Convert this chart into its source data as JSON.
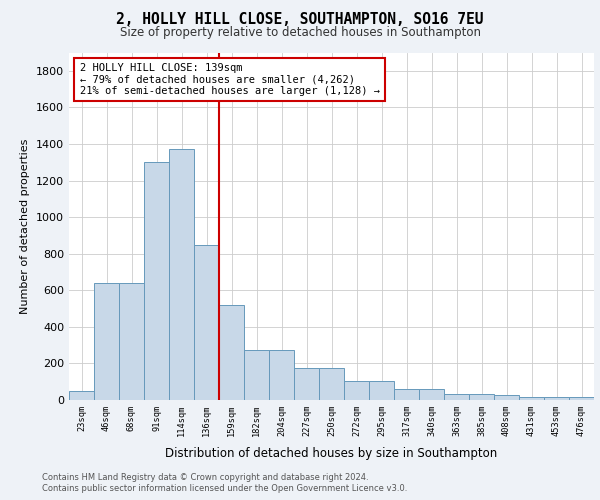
{
  "title_line1": "2, HOLLY HILL CLOSE, SOUTHAMPTON, SO16 7EU",
  "title_line2": "Size of property relative to detached houses in Southampton",
  "xlabel": "Distribution of detached houses by size in Southampton",
  "ylabel": "Number of detached properties",
  "categories": [
    "23sqm",
    "46sqm",
    "68sqm",
    "91sqm",
    "114sqm",
    "136sqm",
    "159sqm",
    "182sqm",
    "204sqm",
    "227sqm",
    "250sqm",
    "272sqm",
    "295sqm",
    "317sqm",
    "340sqm",
    "363sqm",
    "385sqm",
    "408sqm",
    "431sqm",
    "453sqm",
    "476sqm"
  ],
  "values": [
    50,
    640,
    640,
    1300,
    1370,
    845,
    520,
    275,
    275,
    175,
    175,
    105,
    105,
    60,
    60,
    35,
    35,
    28,
    15,
    15,
    15
  ],
  "bar_color": "#c8d8e8",
  "bar_edge_color": "#6699bb",
  "vline_x": 5.5,
  "vline_color": "#cc0000",
  "annotation_line1": "2 HOLLY HILL CLOSE: 139sqm",
  "annotation_line2": "← 79% of detached houses are smaller (4,262)",
  "annotation_line3": "21% of semi-detached houses are larger (1,128) →",
  "annotation_box_color": "#cc0000",
  "ylim": [
    0,
    1900
  ],
  "yticks": [
    0,
    200,
    400,
    600,
    800,
    1000,
    1200,
    1400,
    1600,
    1800
  ],
  "footer_line1": "Contains HM Land Registry data © Crown copyright and database right 2024.",
  "footer_line2": "Contains public sector information licensed under the Open Government Licence v3.0.",
  "bg_color": "#eef2f7",
  "plot_bg_color": "#ffffff",
  "grid_color": "#cccccc"
}
